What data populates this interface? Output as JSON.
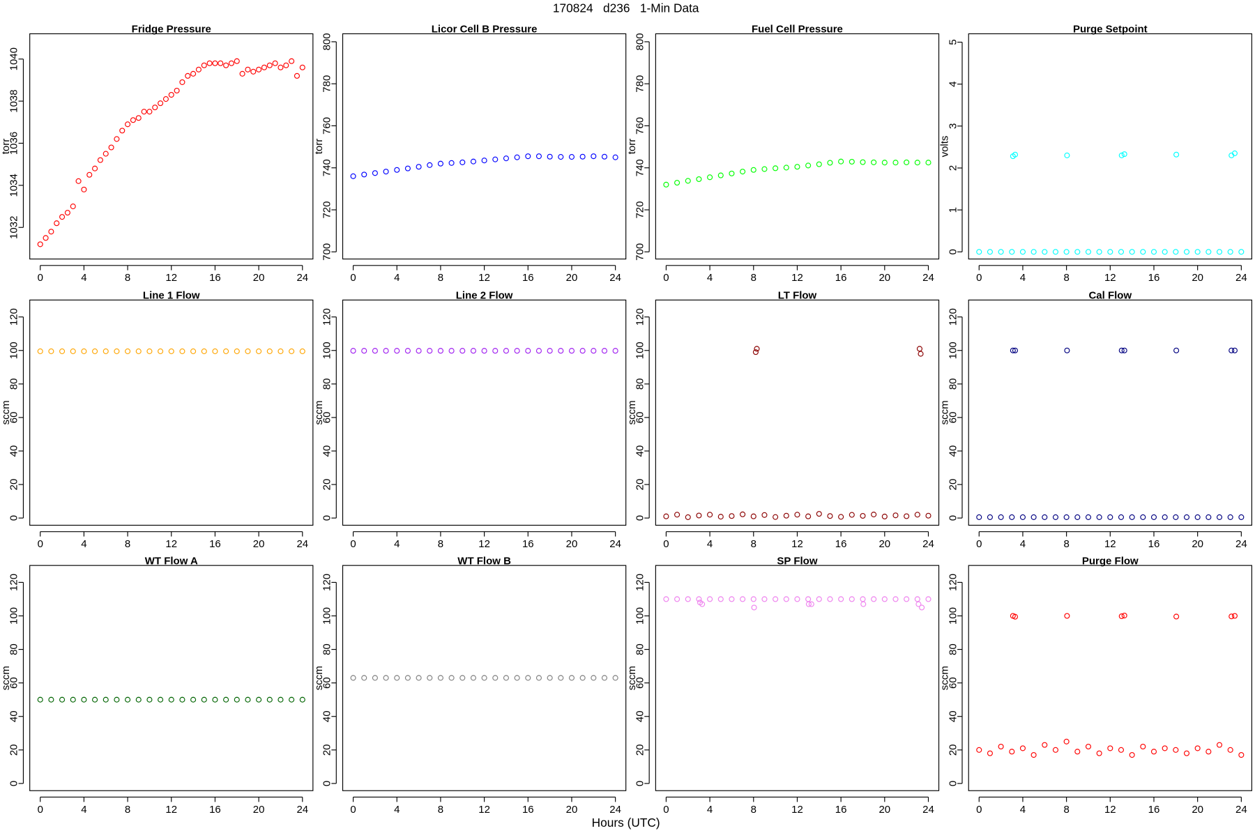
{
  "title": "170824   d236   1-Min Data",
  "xlabel": "Hours (UTC)",
  "chart_data": [
    {
      "type": "scatter",
      "title": "Fridge Pressure",
      "ylabel": "torr",
      "color": "#ff0000",
      "x": [
        0,
        0.5,
        1,
        1.5,
        2,
        2.5,
        3,
        3.5,
        4,
        4.5,
        5,
        5.5,
        6,
        6.5,
        7,
        7.5,
        8,
        8.5,
        9,
        9.5,
        10,
        10.5,
        11,
        11.5,
        12,
        12.5,
        13,
        13.5,
        14,
        14.5,
        15,
        15.5,
        16,
        16.5,
        17,
        17.5,
        18,
        18.5,
        19,
        19.5,
        20,
        20.5,
        21,
        21.5,
        22,
        22.5,
        23,
        23.5,
        24
      ],
      "values": [
        1031.2,
        1031.5,
        1031.8,
        1032.2,
        1032.5,
        1032.7,
        1033,
        1034.2,
        1033.8,
        1034.5,
        1034.8,
        1035.2,
        1035.5,
        1035.8,
        1036.2,
        1036.6,
        1036.9,
        1037.1,
        1037.2,
        1037.5,
        1037.5,
        1037.7,
        1037.9,
        1038.1,
        1038.3,
        1038.5,
        1038.9,
        1039.2,
        1039.3,
        1039.5,
        1039.7,
        1039.8,
        1039.8,
        1039.8,
        1039.7,
        1039.8,
        1039.9,
        1039.3,
        1039.5,
        1039.4,
        1039.5,
        1039.6,
        1039.7,
        1039.8,
        1039.6,
        1039.7,
        1039.9,
        1039.2,
        1039.6
      ],
      "xlim": [
        -0.96,
        24.96
      ],
      "xticks": [
        0,
        4,
        8,
        12,
        16,
        20,
        24
      ],
      "ylim": [
        1030.5,
        1041.2
      ],
      "yticks": [
        1032,
        1034,
        1036,
        1038,
        1040
      ]
    },
    {
      "type": "scatter",
      "title": "Licor Cell B Pressure",
      "ylabel": "torr",
      "color": "#0000ff",
      "x": [
        0,
        1,
        2,
        3,
        4,
        5,
        6,
        7,
        8,
        9,
        10,
        11,
        12,
        13,
        14,
        15,
        16,
        17,
        18,
        19,
        20,
        21,
        22,
        23,
        24
      ],
      "values": [
        736,
        736.8,
        737.5,
        738.2,
        739,
        739.7,
        740.5,
        741.3,
        742,
        742.3,
        742.6,
        743,
        743.5,
        744,
        744.5,
        745,
        745.5,
        745.5,
        745.3,
        745.2,
        745.2,
        745.3,
        745.5,
        745.3,
        745
      ],
      "xlim": [
        -0.96,
        24.96
      ],
      "xticks": [
        0,
        4,
        8,
        12,
        16,
        20,
        24
      ],
      "ylim": [
        696.6,
        803.8
      ],
      "yticks": [
        700,
        720,
        740,
        760,
        780,
        800
      ]
    },
    {
      "type": "scatter",
      "title": "Fuel Cell Pressure",
      "ylabel": "torr",
      "color": "#00ff00",
      "x": [
        0,
        1,
        2,
        3,
        4,
        5,
        6,
        7,
        8,
        9,
        10,
        11,
        12,
        13,
        14,
        15,
        16,
        17,
        18,
        19,
        20,
        21,
        22,
        23,
        24
      ],
      "values": [
        732,
        732.9,
        733.8,
        734.6,
        735.5,
        736.4,
        737.3,
        738.2,
        739,
        739.4,
        739.8,
        740.1,
        740.5,
        741.1,
        741.7,
        742.4,
        743,
        742.9,
        742.7,
        742.6,
        742.5,
        742.5,
        742.6,
        742.5,
        742.5
      ],
      "xlim": [
        -0.96,
        24.96
      ],
      "xticks": [
        0,
        4,
        8,
        12,
        16,
        20,
        24
      ],
      "ylim": [
        696.6,
        803.8
      ],
      "yticks": [
        700,
        720,
        740,
        760,
        780,
        800
      ]
    },
    {
      "type": "scatter",
      "title": "Purge Setpoint",
      "ylabel": "volts",
      "color": "#00ffff",
      "x": [
        0,
        1,
        2,
        3,
        3.1,
        3.3,
        4,
        5,
        6,
        7,
        8,
        8.05,
        9,
        10,
        11,
        12,
        13,
        13.05,
        13.3,
        14,
        15,
        16,
        17,
        18,
        18.05,
        19,
        20,
        21,
        22,
        23,
        23.1,
        23.4,
        24
      ],
      "values": [
        0,
        0,
        0,
        0,
        2.28,
        2.32,
        0,
        0,
        0,
        0,
        0,
        2.3,
        0,
        0,
        0,
        0,
        0,
        2.3,
        2.33,
        0,
        0,
        0,
        0,
        0,
        2.32,
        0,
        0,
        0,
        0,
        0,
        2.3,
        2.35,
        0
      ],
      "xlim": [
        -0.96,
        24.96
      ],
      "xticks": [
        0,
        4,
        8,
        12,
        16,
        20,
        24
      ],
      "ylim": [
        -0.17,
        5.2
      ],
      "yticks": [
        0,
        1,
        2,
        3,
        4,
        5
      ]
    },
    {
      "type": "scatter",
      "title": "Line 1 Flow",
      "ylabel": "sccm",
      "color": "#ffa500",
      "x": [
        0,
        1,
        2,
        3,
        4,
        5,
        6,
        7,
        8,
        9,
        10,
        11,
        12,
        13,
        14,
        15,
        16,
        17,
        18,
        19,
        20,
        21,
        22,
        23,
        24
      ],
      "values": [
        99.5,
        99.5,
        99.5,
        99.5,
        99.5,
        99.5,
        99.5,
        99.5,
        99.5,
        99.5,
        99.5,
        99.5,
        99.5,
        99.5,
        99.5,
        99.5,
        99.5,
        99.5,
        99.5,
        99.5,
        99.5,
        99.5,
        99.5,
        99.5,
        99.5
      ],
      "xlim": [
        -0.96,
        24.96
      ],
      "xticks": [
        0,
        4,
        8,
        12,
        16,
        20,
        24
      ],
      "ylim": [
        -4.3,
        130.1
      ],
      "yticks": [
        0,
        20,
        40,
        60,
        80,
        100,
        120
      ]
    },
    {
      "type": "scatter",
      "title": "Line 2 Flow",
      "ylabel": "sccm",
      "color": "#a020f0",
      "x": [
        0,
        1,
        2,
        3,
        4,
        5,
        6,
        7,
        8,
        9,
        10,
        11,
        12,
        13,
        14,
        15,
        16,
        17,
        18,
        19,
        20,
        21,
        22,
        23,
        24
      ],
      "values": [
        99.8,
        99.8,
        99.8,
        99.8,
        99.8,
        99.8,
        99.8,
        99.8,
        99.8,
        99.8,
        99.8,
        99.8,
        99.8,
        99.8,
        99.8,
        99.8,
        99.8,
        99.8,
        99.8,
        99.8,
        99.8,
        99.8,
        99.8,
        99.8,
        99.8
      ],
      "xlim": [
        -0.96,
        24.96
      ],
      "xticks": [
        0,
        4,
        8,
        12,
        16,
        20,
        24
      ],
      "ylim": [
        -4.3,
        130.1
      ],
      "yticks": [
        0,
        20,
        40,
        60,
        80,
        100,
        120
      ]
    },
    {
      "type": "scatter",
      "title": "LT Flow",
      "ylabel": "sccm",
      "color": "#8b0000",
      "x": [
        0,
        1,
        2,
        3,
        4,
        5,
        6,
        7,
        8,
        8.2,
        8.3,
        9,
        10,
        11,
        12,
        13,
        14,
        15,
        16,
        17,
        18,
        19,
        20,
        21,
        22,
        23,
        23.2,
        23.3,
        24
      ],
      "values": [
        1,
        2,
        0.5,
        1.5,
        2,
        0.8,
        1.2,
        2.2,
        1,
        99,
        101,
        1.8,
        0.6,
        1.4,
        2,
        1,
        2.5,
        1.2,
        0.7,
        1.9,
        1.3,
        2.1,
        0.9,
        1.6,
        1.1,
        2,
        101,
        98,
        1.4
      ],
      "xlim": [
        -0.96,
        24.96
      ],
      "xticks": [
        0,
        4,
        8,
        12,
        16,
        20,
        24
      ],
      "ylim": [
        -4.3,
        130.1
      ],
      "yticks": [
        0,
        20,
        40,
        60,
        80,
        100,
        120
      ]
    },
    {
      "type": "scatter",
      "title": "Cal Flow",
      "ylabel": "sccm",
      "color": "#000080",
      "x": [
        0,
        1,
        2,
        3,
        3.1,
        3.3,
        4,
        5,
        6,
        7,
        8,
        8.05,
        9,
        10,
        11,
        12,
        13,
        13.05,
        13.3,
        14,
        15,
        16,
        17,
        18,
        18.05,
        19,
        20,
        21,
        22,
        23,
        23.1,
        23.4,
        24
      ],
      "values": [
        0.5,
        0.5,
        0.5,
        0.5,
        100,
        100,
        0.5,
        0.5,
        0.5,
        0.5,
        0.5,
        100,
        0.5,
        0.5,
        0.5,
        0.5,
        0.5,
        100,
        100,
        0.5,
        0.5,
        0.5,
        0.5,
        0.5,
        100,
        0.5,
        0.5,
        0.5,
        0.5,
        0.5,
        100,
        100,
        0.5
      ],
      "xlim": [
        -0.96,
        24.96
      ],
      "xticks": [
        0,
        4,
        8,
        12,
        16,
        20,
        24
      ],
      "ylim": [
        -4.3,
        130.1
      ],
      "yticks": [
        0,
        20,
        40,
        60,
        80,
        100,
        120
      ]
    },
    {
      "type": "scatter",
      "title": "WT Flow A",
      "ylabel": "sccm",
      "color": "#006400",
      "x": [
        0,
        1,
        2,
        3,
        4,
        5,
        6,
        7,
        8,
        9,
        10,
        11,
        12,
        13,
        14,
        15,
        16,
        17,
        18,
        19,
        20,
        21,
        22,
        23,
        24
      ],
      "values": [
        50,
        50,
        50,
        50,
        50,
        50,
        50,
        50,
        50,
        50,
        50,
        50,
        50,
        50,
        50,
        50,
        50,
        50,
        50,
        50,
        50,
        50,
        50,
        50,
        50
      ],
      "xlim": [
        -0.96,
        24.96
      ],
      "xticks": [
        0,
        4,
        8,
        12,
        16,
        20,
        24
      ],
      "ylim": [
        -4.3,
        130.1
      ],
      "yticks": [
        0,
        20,
        40,
        60,
        80,
        100,
        120
      ]
    },
    {
      "type": "scatter",
      "title": "WT Flow B",
      "ylabel": "sccm",
      "color": "#808080",
      "x": [
        0,
        1,
        2,
        3,
        4,
        5,
        6,
        7,
        8,
        9,
        10,
        11,
        12,
        13,
        14,
        15,
        16,
        17,
        18,
        19,
        20,
        21,
        22,
        23,
        24
      ],
      "values": [
        63,
        63,
        63,
        63,
        63,
        63,
        63,
        63,
        63,
        63,
        63,
        63,
        63,
        63,
        63,
        63,
        63,
        63,
        63,
        63,
        63,
        63,
        63,
        63,
        63
      ],
      "xlim": [
        -0.96,
        24.96
      ],
      "xticks": [
        0,
        4,
        8,
        12,
        16,
        20,
        24
      ],
      "ylim": [
        -4.3,
        130.1
      ],
      "yticks": [
        0,
        20,
        40,
        60,
        80,
        100,
        120
      ]
    },
    {
      "type": "scatter",
      "title": "SP Flow",
      "ylabel": "sccm",
      "color": "#ee82ee",
      "x": [
        0,
        1,
        2,
        3,
        3.1,
        3.3,
        4,
        5,
        6,
        7,
        8,
        8.05,
        9,
        10,
        11,
        12,
        13,
        13.05,
        13.3,
        14,
        15,
        16,
        17,
        18,
        18.05,
        19,
        20,
        21,
        22,
        23,
        23.1,
        23.4,
        24
      ],
      "values": [
        110,
        110,
        110,
        110,
        108,
        107,
        110,
        110,
        110,
        110,
        110,
        105,
        110,
        110,
        110,
        110,
        110,
        107,
        107,
        110,
        110,
        110,
        110,
        110,
        107,
        110,
        110,
        110,
        110,
        110,
        107,
        105,
        110
      ],
      "xlim": [
        -0.96,
        24.96
      ],
      "xticks": [
        0,
        4,
        8,
        12,
        16,
        20,
        24
      ],
      "ylim": [
        -4.3,
        130.1
      ],
      "yticks": [
        0,
        20,
        40,
        60,
        80,
        100,
        120
      ]
    },
    {
      "type": "scatter",
      "title": "Purge Flow",
      "ylabel": "sccm",
      "color": "#ff0000",
      "x": [
        0,
        1,
        2,
        3,
        3.1,
        3.3,
        4,
        5,
        6,
        7,
        8,
        8.05,
        9,
        10,
        11,
        12,
        13,
        13.05,
        13.3,
        14,
        15,
        16,
        17,
        18,
        18.05,
        19,
        20,
        21,
        22,
        23,
        23.1,
        23.4,
        24
      ],
      "values": [
        20,
        18,
        22,
        19,
        100,
        99.5,
        21,
        17,
        23,
        20,
        25,
        100,
        19,
        22,
        18,
        21,
        20,
        99.8,
        100.2,
        17,
        22,
        19,
        21,
        20,
        99.6,
        18,
        21,
        19,
        23,
        20,
        99.7,
        100,
        17
      ],
      "xlim": [
        -0.96,
        24.96
      ],
      "xticks": [
        0,
        4,
        8,
        12,
        16,
        20,
        24
      ],
      "ylim": [
        -4.3,
        130.1
      ],
      "yticks": [
        0,
        20,
        40,
        60,
        80,
        100,
        120
      ]
    }
  ]
}
